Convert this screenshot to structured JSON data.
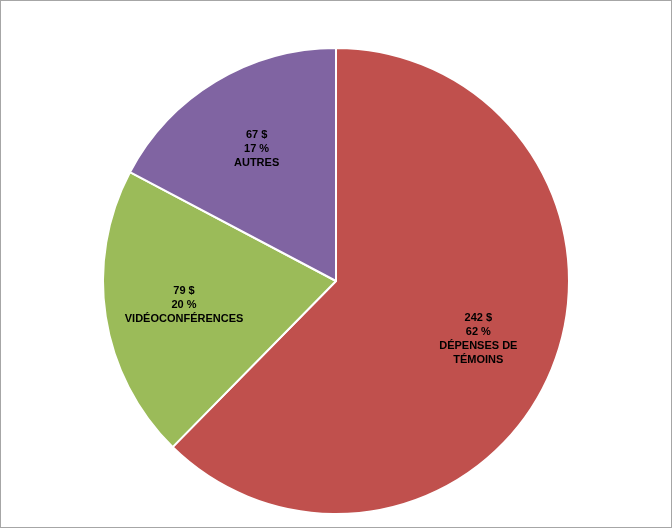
{
  "chart_data": {
    "type": "pie",
    "categories": [
      "DÉPENSES DE TÉMOINS",
      "VIDÉOCONFÉRENCES",
      "AUTRES"
    ],
    "values": [
      242,
      79,
      67
    ],
    "value_labels": [
      "242 $",
      "79 $",
      "67 $"
    ],
    "percents": [
      62,
      20,
      17
    ],
    "percent_labels": [
      "62 %",
      "20 %",
      "17 %"
    ],
    "colors": [
      "#c0504d",
      "#9bbb59",
      "#8064a2"
    ],
    "data_labels": true,
    "legend": false
  }
}
